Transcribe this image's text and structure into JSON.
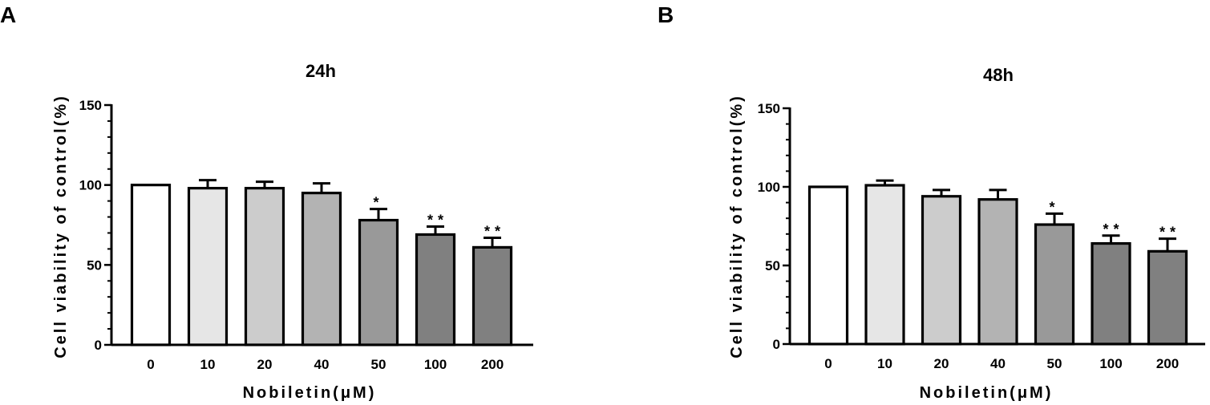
{
  "colors": {
    "axis": "#000000",
    "bar_fills": [
      "#ffffff",
      "#e6e6e6",
      "#cccccc",
      "#b3b3b3",
      "#999999",
      "#808080",
      "#808080"
    ]
  },
  "chart_data": [
    {
      "type": "bar",
      "panel_label": "A",
      "title": "24h",
      "xlabel": "Nobiletin(μM)",
      "ylabel": "Cell  viability of control(%)",
      "categories": [
        "0",
        "10",
        "20",
        "40",
        "50",
        "100",
        "200"
      ],
      "values": [
        100,
        98,
        98,
        95,
        78,
        69,
        61
      ],
      "error": [
        0,
        5,
        4,
        6,
        7,
        5,
        6
      ],
      "significance": [
        "",
        "",
        "",
        "",
        "*",
        "**",
        "**"
      ],
      "ylim": [
        0,
        150
      ],
      "yticks": [
        "0",
        "50",
        "100",
        "150"
      ],
      "grid": false,
      "legend": "none"
    },
    {
      "type": "bar",
      "panel_label": "B",
      "title": "48h",
      "xlabel": "Nobiletin(μM)",
      "ylabel": "Cell  viability of control(%)",
      "categories": [
        "0",
        "10",
        "20",
        "40",
        "50",
        "100",
        "200"
      ],
      "values": [
        100,
        101,
        94,
        92,
        76,
        64,
        59
      ],
      "error": [
        0,
        3,
        4,
        6,
        7,
        5,
        8
      ],
      "significance": [
        "",
        "",
        "",
        "",
        "*",
        "**",
        "**"
      ],
      "ylim": [
        0,
        150
      ],
      "yticks": [
        "0",
        "50",
        "100",
        "150"
      ],
      "grid": false,
      "legend": "none"
    }
  ]
}
